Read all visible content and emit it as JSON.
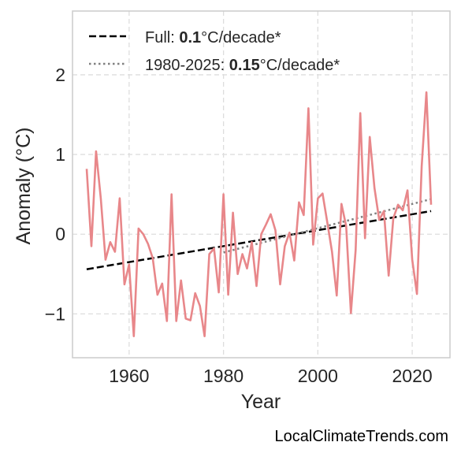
{
  "chart_data": {
    "type": "line",
    "xlabel": "Year",
    "ylabel": "Anomaly (°C)",
    "xlim": [
      1948,
      2028
    ],
    "ylim": [
      -1.55,
      2.8
    ],
    "xticks": [
      1960,
      1980,
      2000,
      2020
    ],
    "xtick_labels": [
      "1960",
      "1980",
      "2000",
      "2020"
    ],
    "yticks": [
      -1,
      0,
      1,
      2
    ],
    "ytick_labels": [
      "−1",
      "0",
      "1",
      "2"
    ],
    "grid": true,
    "legend_position": "top-left",
    "colors": {
      "series": "#e8878a",
      "full_trend": "#000000",
      "recent_trend": "#808080",
      "grid": "#dddddd",
      "frame": "#cccccc"
    },
    "series": [
      {
        "x": [
          1951,
          1952,
          1953,
          1954,
          1955,
          1956,
          1957,
          1958,
          1959,
          1960,
          1961,
          1962,
          1963,
          1964,
          1965,
          1966,
          1967,
          1968,
          1969,
          1970,
          1971,
          1972,
          1973,
          1974,
          1975,
          1976,
          1977,
          1978,
          1979,
          1980,
          1981,
          1982,
          1983,
          1984,
          1985,
          1986,
          1987,
          1988,
          1989,
          1990,
          1991,
          1992,
          1993,
          1994,
          1995,
          1996,
          1997,
          1998,
          1999,
          2000,
          2001,
          2002,
          2003,
          2004,
          2005,
          2006,
          2007,
          2008,
          2009,
          2010,
          2011,
          2012,
          2013,
          2014,
          2015,
          2016,
          2017,
          2018,
          2019,
          2020,
          2021,
          2022,
          2023,
          2024
        ],
        "values": [
          0.82,
          -0.15,
          1.04,
          0.45,
          -0.32,
          -0.1,
          -0.22,
          0.45,
          -0.63,
          -0.38,
          -1.28,
          0.07,
          0.0,
          -0.12,
          -0.3,
          -0.76,
          -0.62,
          -1.09,
          0.5,
          -1.09,
          -0.58,
          -1.06,
          -1.08,
          -0.74,
          -0.9,
          -1.28,
          -0.25,
          -0.18,
          -0.73,
          0.5,
          -0.76,
          0.27,
          -0.5,
          -0.25,
          -0.43,
          -0.1,
          -0.65,
          0.0,
          0.12,
          0.25,
          0.05,
          -0.63,
          -0.15,
          0.02,
          -0.33,
          0.4,
          0.24,
          1.58,
          -0.13,
          0.45,
          0.51,
          0.15,
          -0.22,
          -0.77,
          0.38,
          0.1,
          -0.99,
          -0.2,
          1.52,
          -0.05,
          1.22,
          0.58,
          0.18,
          0.29,
          -0.52,
          0.2,
          0.37,
          0.3,
          0.55,
          -0.32,
          -0.75,
          0.85,
          1.78,
          0.37
        ]
      }
    ],
    "trend_lines": [
      {
        "name": "Full",
        "label_prefix": "Full: ",
        "rate": "0.1",
        "unit": "°C/decade*",
        "style": "dashed",
        "x": [
          1951,
          2024
        ],
        "y": [
          -0.44,
          0.29
        ]
      },
      {
        "name": "1980-2025",
        "label_prefix": "1980-2025: ",
        "rate": "0.15",
        "unit": "°C/decade*",
        "style": "dotted",
        "x": [
          1980,
          2024
        ],
        "y": [
          -0.23,
          0.44
        ]
      }
    ],
    "credit": "LocalClimateTrends.com"
  }
}
